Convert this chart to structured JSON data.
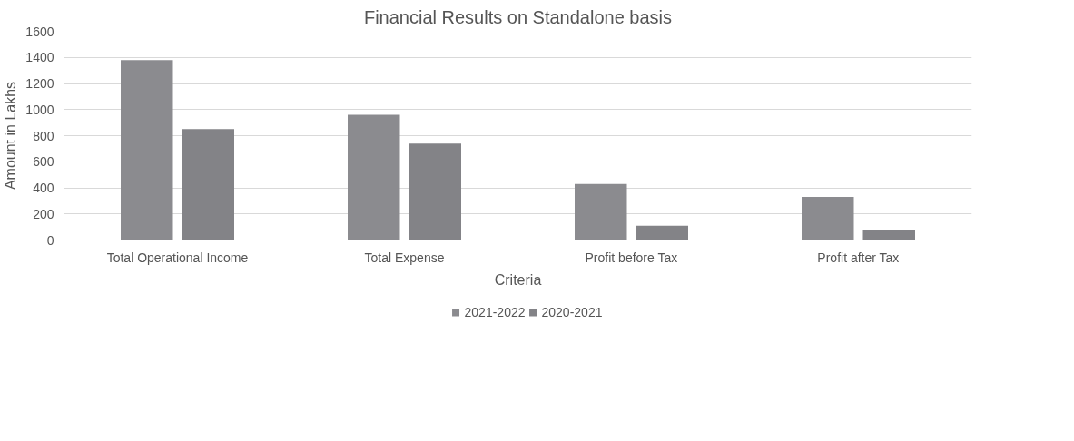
{
  "chart_data": {
    "type": "bar",
    "title": "Financial Results on Standalone basis",
    "xlabel": "Criteria",
    "ylabel": "Amount in Lakhs",
    "categories": [
      "Total Operational Income",
      "Total Expense",
      "Profit before Tax",
      "Profit after Tax"
    ],
    "series": [
      {
        "name": "2021-2022",
        "color": "#8b8b8f",
        "values": [
          1380,
          960,
          430,
          330
        ]
      },
      {
        "name": "2020-2021",
        "color": "#838387",
        "values": [
          850,
          740,
          110,
          80
        ]
      }
    ],
    "ylim": [
      0,
      1600
    ],
    "yticks": [
      0,
      200,
      400,
      600,
      800,
      1000,
      1200,
      1400,
      1600
    ],
    "grid": "y",
    "legend": "bottom"
  }
}
